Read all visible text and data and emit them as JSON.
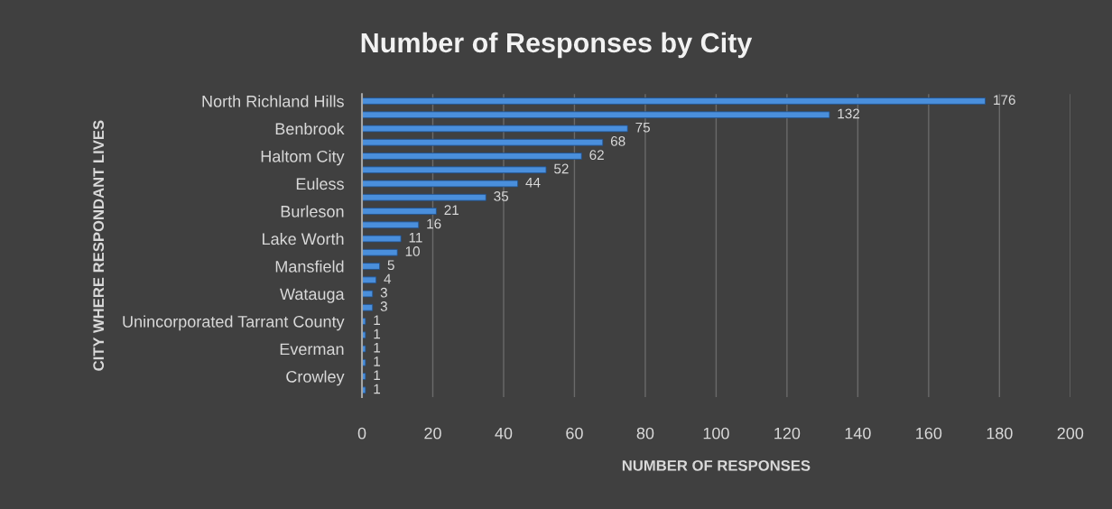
{
  "chart_data": {
    "type": "bar",
    "orientation": "horizontal",
    "title": "Number of Responses by City",
    "xlabel": "NUMBER OF RESPONSES",
    "ylabel": "CITY WHERE RESPONDANT LIVES",
    "categories": [
      "North Richland Hills",
      null,
      "Benbrook",
      null,
      "Haltom City",
      null,
      "Euless",
      null,
      "Burleson",
      null,
      "Lake Worth",
      null,
      "Mansfield",
      null,
      "Watauga",
      null,
      "Unincorporated Tarrant County",
      null,
      "Everman",
      null,
      "Crowley",
      null
    ],
    "values": [
      176,
      132,
      75,
      68,
      62,
      52,
      44,
      35,
      21,
      16,
      11,
      10,
      5,
      4,
      3,
      3,
      1,
      1,
      1,
      1,
      1,
      1
    ],
    "color": "#4a8fdc",
    "xlim": [
      0,
      200
    ],
    "xticks": [
      0,
      20,
      40,
      60,
      80,
      100,
      120,
      140,
      160,
      180,
      200
    ],
    "grid": "x",
    "data_labels": true
  }
}
